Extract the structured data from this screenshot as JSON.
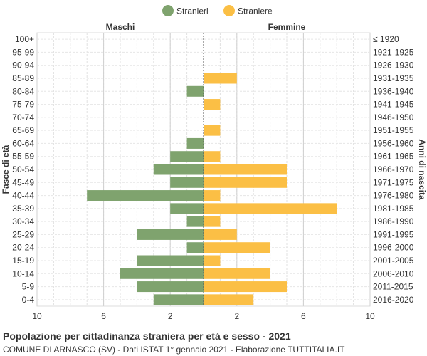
{
  "chart_data": {
    "type": "bar",
    "orientation": "horizontal-pyramid",
    "legend": {
      "placement": "top-center",
      "items": [
        {
          "name": "Stranieri",
          "color": "#7fa36e"
        },
        {
          "name": "Straniere",
          "color": "#fbbf45"
        }
      ]
    },
    "side_labels": {
      "left": "Maschi",
      "right": "Femmine"
    },
    "ylabel_left": "Fasce di età",
    "ylabel_right": "Anni di nascita",
    "xlim": [
      -10,
      10
    ],
    "x_tick_labels": [
      "10",
      "6",
      "2",
      "2",
      "6",
      "10"
    ],
    "x_tick_values": [
      -10,
      -6,
      -2,
      2,
      6,
      10
    ],
    "categories": [
      "100+",
      "95-99",
      "90-94",
      "85-89",
      "80-84",
      "75-79",
      "70-74",
      "65-69",
      "60-64",
      "55-59",
      "50-54",
      "45-49",
      "40-44",
      "35-39",
      "30-34",
      "25-29",
      "20-24",
      "15-19",
      "10-14",
      "5-9",
      "0-4"
    ],
    "birth_years": [
      "≤ 1920",
      "1921-1925",
      "1926-1930",
      "1931-1935",
      "1936-1940",
      "1941-1945",
      "1946-1950",
      "1951-1955",
      "1956-1960",
      "1961-1965",
      "1966-1970",
      "1971-1975",
      "1976-1980",
      "1981-1985",
      "1986-1990",
      "1991-1995",
      "1996-2000",
      "2001-2005",
      "2006-2010",
      "2011-2015",
      "2016-2020"
    ],
    "series": [
      {
        "name": "Stranieri",
        "color": "#7fa36e",
        "values": [
          0,
          0,
          0,
          0,
          1,
          0,
          0,
          0,
          1,
          2,
          3,
          2,
          7,
          2,
          1,
          4,
          1,
          4,
          5,
          4,
          3
        ]
      },
      {
        "name": "Straniere",
        "color": "#fbbf45",
        "values": [
          0,
          0,
          0,
          2,
          0,
          1,
          0,
          1,
          0,
          1,
          5,
          5,
          1,
          8,
          1,
          2,
          4,
          1,
          4,
          5,
          3
        ]
      }
    ],
    "grid": true
  },
  "footer": {
    "title": "Popolazione per cittadinanza straniera per età e sesso - 2021",
    "subtitle": "COMUNE DI ARNASCO (SV) - Dati ISTAT 1° gennaio 2021 - Elaborazione TUTTITALIA.IT"
  }
}
